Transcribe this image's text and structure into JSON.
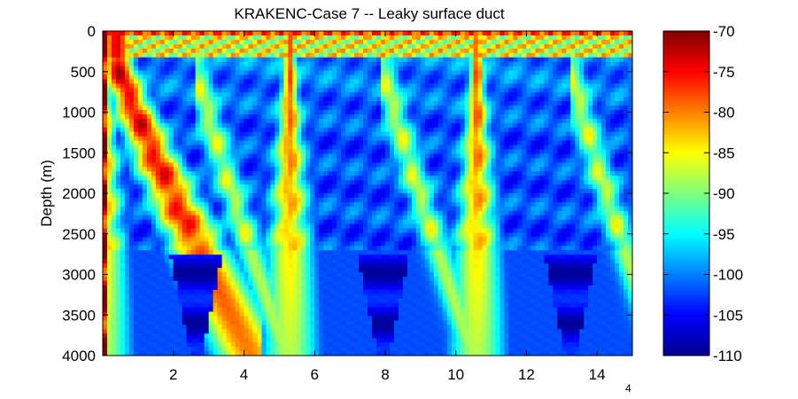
{
  "chart_data": {
    "type": "heatmap",
    "title": "KRAKENC-Case 7 -- Leaky surface duct",
    "xlabel": "",
    "ylabel": "Depth (m)",
    "x_exponent": "4",
    "xlim": [
      0,
      1.5
    ],
    "ylim": [
      4000,
      0
    ],
    "x_ticks": [
      2,
      4,
      6,
      8,
      10,
      12,
      14
    ],
    "y_ticks": [
      0,
      500,
      1000,
      1500,
      2000,
      2500,
      3000,
      3500,
      4000
    ],
    "colorbar": {
      "min": -110,
      "max": -70,
      "ticks": [
        -70,
        -75,
        -80,
        -85,
        -90,
        -95,
        -100,
        -105,
        -110
      ],
      "colormap": "jet"
    },
    "field_description": "transmission loss field (dB); bright convergence-zone caustic arches touching the surface near x = 5.3 and 10.6 (x 10^4), a dark deep shadow zone between caustics, duct energy trapped above ~300 m",
    "grid": false,
    "colors": {
      "background": "#ffffff",
      "jet_low": "#00008f",
      "jet_mid": "#7fff7f",
      "jet_high": "#800000"
    }
  }
}
